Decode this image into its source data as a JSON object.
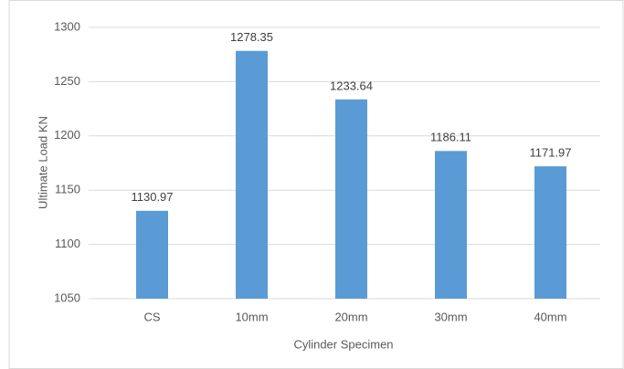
{
  "chart_data": {
    "type": "bar",
    "x_label": "Cylinder Specimen",
    "y_label": "Ultimate Load KN",
    "categories": [
      "CS",
      "10mm",
      "20mm",
      "30mm",
      "40mm"
    ],
    "values": [
      1130.97,
      1278.35,
      1233.64,
      1186.11,
      1171.97
    ],
    "color": "#5b9bd5",
    "ylim": [
      1050,
      1300
    ],
    "yticks": [
      1050,
      1100,
      1150,
      1200,
      1250,
      1300
    ],
    "grid": true
  }
}
